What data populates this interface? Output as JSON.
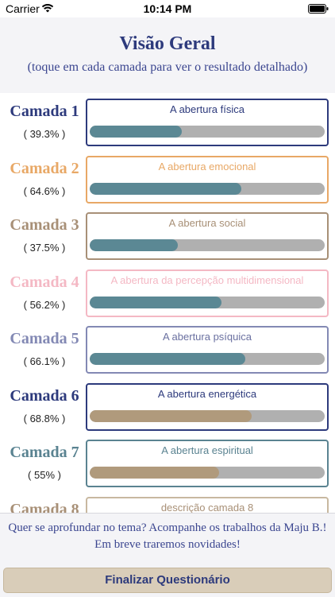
{
  "status_bar": {
    "carrier": "Carrier",
    "time": "10:14 PM"
  },
  "header": {
    "title": "Visão Geral",
    "subtitle": "(toque em cada camada para ver o resultado detalhado)"
  },
  "layers": [
    {
      "name": "Camada 1",
      "percent_label": "( 39.3% )",
      "value": 39.3,
      "description": "A abertura física",
      "name_color": "#2d3a7c",
      "border_color": "#2d3a7c",
      "desc_color": "#2d3a7c",
      "fill_color": "#5b8894"
    },
    {
      "name": "Camada 2",
      "percent_label": "( 64.6% )",
      "value": 64.6,
      "description": "A abertura emocional",
      "name_color": "#e8a866",
      "border_color": "#e8a866",
      "desc_color": "#e8a866",
      "fill_color": "#5b8894"
    },
    {
      "name": "Camada 3",
      "percent_label": "( 37.5% )",
      "value": 37.5,
      "description": "A abertura social",
      "name_color": "#a89077",
      "border_color": "#a89077",
      "desc_color": "#a89077",
      "fill_color": "#5b8894"
    },
    {
      "name": "Camada 4",
      "percent_label": "( 56.2% )",
      "value": 56.2,
      "description": "A abertura da percepção multidimensional",
      "name_color": "#f4b8c4",
      "border_color": "#f4b8c4",
      "desc_color": "#f4b8c4",
      "fill_color": "#5b8894"
    },
    {
      "name": "Camada 5",
      "percent_label": "( 66.1% )",
      "value": 66.1,
      "description": "A abertura psíquica",
      "name_color": "#8389b4",
      "border_color": "#8389b4",
      "desc_color": "#6a70a0",
      "fill_color": "#5b8894"
    },
    {
      "name": "Camada 6",
      "percent_label": "( 68.8% )",
      "value": 68.8,
      "description": "A abertura energética",
      "name_color": "#2d3a7c",
      "border_color": "#2d3a7c",
      "desc_color": "#2d3a7c",
      "fill_color": "#b09a7c"
    },
    {
      "name": "Camada 7",
      "percent_label": "( 55% )",
      "value": 55,
      "description": "A abertura espiritual",
      "name_color": "#5a8391",
      "border_color": "#5a8391",
      "desc_color": "#5a8391",
      "fill_color": "#b09a7c"
    },
    {
      "name": "Camada 8",
      "percent_label": "",
      "value": 0,
      "description": "descrição camada 8",
      "name_color": "#a89077",
      "border_color": "#c8b8a0",
      "desc_color": "#a89077",
      "fill_color": "#b09a7c"
    }
  ],
  "footer": {
    "message": "Quer se aprofundar no tema? Acompanhe os trabalhos da Maju B.! Em breve traremos novidades!",
    "button_label": "Finalizar Questionário"
  }
}
